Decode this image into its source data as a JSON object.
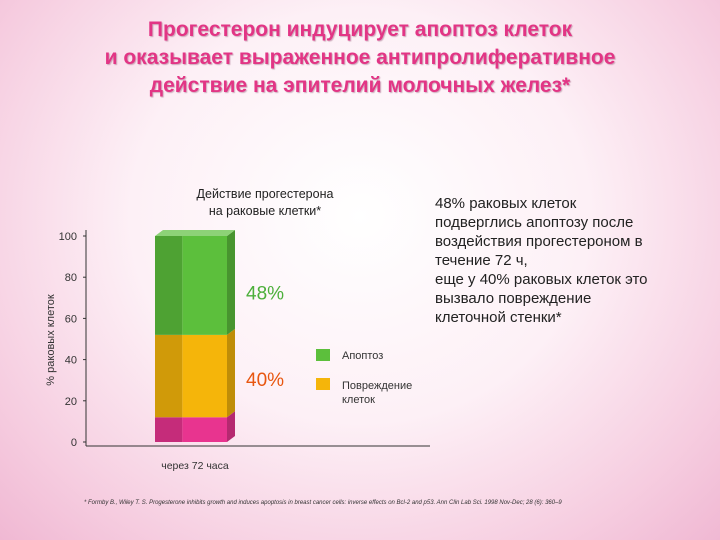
{
  "title": {
    "line1": "Прогестерон индуцирует апоптоз клеток",
    "line2": "и оказывает выраженное антипролиферативное",
    "line3": "действие на эпителий молочных желез*"
  },
  "chart_data": {
    "type": "bar",
    "title_line1": "Действие прогестерона",
    "title_line2": "на раковые клетки*",
    "ylabel": "% раковых клеток",
    "ylim": [
      0,
      100
    ],
    "yticks": [
      0,
      20,
      40,
      60,
      80,
      100
    ],
    "categories": [
      "через 72 часа"
    ],
    "series": [
      {
        "name": "",
        "values": [
          12
        ],
        "color": "#e8348f"
      },
      {
        "name": "Повреждение клеток",
        "values": [
          40
        ],
        "color": "#f5b50a"
      },
      {
        "name": "Апоптоз",
        "values": [
          48
        ],
        "color": "#5cbf3c"
      }
    ],
    "data_labels": {
      "apoptosis": "48%",
      "damage": "40%"
    },
    "label_colors": {
      "apoptosis": "#4caf3a",
      "damage": "#e8560f"
    },
    "legend": [
      {
        "label": "Апоптоз",
        "color": "#5cbf3c"
      },
      {
        "label_line1": "Повреждение",
        "label_line2": "клеток",
        "color": "#f5b50a"
      }
    ],
    "legend_position": "right"
  },
  "description": {
    "lines": [
      "48% раковых клеток",
      "подверглись апоптозу после",
      "воздействия прогестероном в",
      "течение 72 ч,",
      "еще у 40% раковых клеток это",
      "вызвало повреждение",
      "клеточной стенки*"
    ]
  },
  "footnote": "* Formby B., Wiley T. S. Progesterone inhibits growth and induces apoptosis in breast cancer cells: inverse effects on Bcl-2 and p53. Ann Clin Lab Sci. 1998 Nov-Dec; 28 (6): 360–9",
  "colors": {
    "title": "#e23585",
    "background": "#f6cde0"
  }
}
